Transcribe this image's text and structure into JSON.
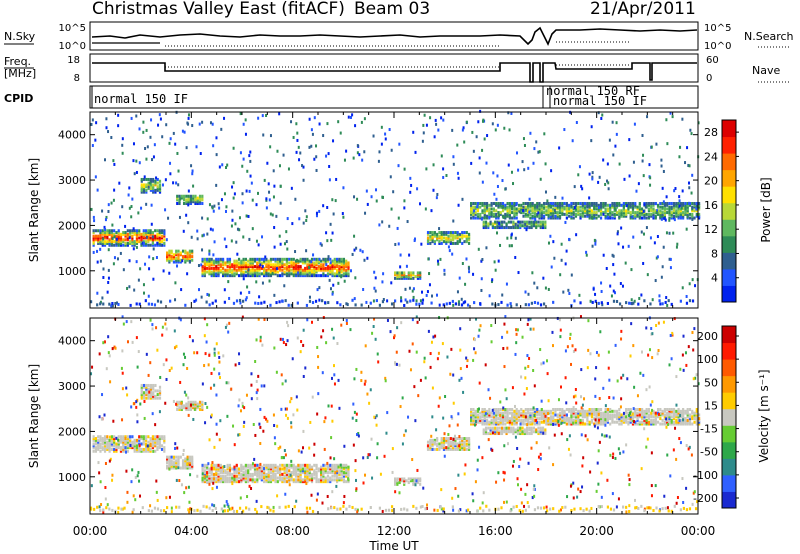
{
  "header": {
    "title": "Christmas Valley East (fitACF)",
    "beam": "Beam 03",
    "date": "21/Apr/2011"
  },
  "panels": {
    "nsky_label": "N.Sky",
    "nsearch_label": "N.Search",
    "noise_ticks": [
      "10^5",
      "10^0"
    ],
    "freq_label_1": "Freq.",
    "freq_label_2": "[MHz]",
    "freq_ticks": [
      "18",
      "8"
    ],
    "nave_ticks": [
      "60",
      "0"
    ],
    "nave_label": "Nave",
    "cpid_label": "CPID",
    "cpid_segments": [
      "normal 150 IF",
      "normal 150 RF",
      "normal 150 IF"
    ]
  },
  "chart_data": [
    {
      "type": "heatmap",
      "ylabel": "Slant Range [km]",
      "xlabel": "Time UT",
      "x_ticks": [
        "00:00",
        "04:00",
        "08:00",
        "12:00",
        "16:00",
        "20:00",
        "00:00"
      ],
      "xlim": [
        0,
        24
      ],
      "ylim": [
        180,
        4500
      ],
      "y_ticks": [
        1000,
        2000,
        3000,
        4000
      ],
      "colorbar": {
        "label": "Power [dB]",
        "ticks": [
          4,
          8,
          12,
          16,
          20,
          24,
          28
        ],
        "range": [
          0,
          30
        ],
        "colors": [
          "#0022ee",
          "#2255ff",
          "#2f5f8f",
          "#2e8b57",
          "#5fb85f",
          "#b8d838",
          "#ffe000",
          "#ffa500",
          "#ff6a00",
          "#ff2000",
          "#dd0000"
        ]
      }
    },
    {
      "type": "heatmap",
      "ylabel": "Slant Range [km]",
      "xlabel": "Time UT",
      "x_ticks": [
        "00:00",
        "04:00",
        "08:00",
        "12:00",
        "16:00",
        "20:00",
        "00:00"
      ],
      "xlim": [
        0,
        24
      ],
      "ylim": [
        180,
        4500
      ],
      "y_ticks": [
        1000,
        2000,
        3000,
        4000
      ],
      "colorbar": {
        "label": "Velocity [m s⁻¹]",
        "ticks": [
          "200",
          "100",
          "50",
          "15",
          "-15",
          "-50",
          "-100",
          "-200"
        ],
        "colors": [
          "#1a2ad0",
          "#3060ff",
          "#2e8b8b",
          "#2ea84a",
          "#66cc33",
          "#c8c8c0",
          "#ffcc00",
          "#ff9900",
          "#ff5a00",
          "#ff1a00",
          "#cc0000"
        ]
      }
    }
  ]
}
